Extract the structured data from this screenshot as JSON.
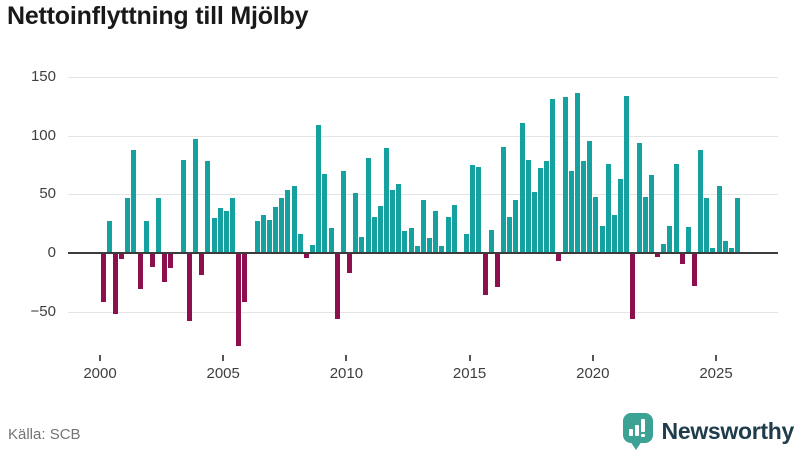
{
  "title": "Nettoinflyttning till Mjölby",
  "source": "Källa: SCB",
  "branding": {
    "name": "Newsworthy",
    "icon": "newsworthy-logo-icon",
    "icon_color": "#3ba294",
    "wordmark_color": "#1e3c4c"
  },
  "colors": {
    "positive_bar": "#16a1a1",
    "negative_bar": "#8e0f4d",
    "gridline": "#e4e4e4",
    "zero_line": "#3c3c3c",
    "axis_text": "#3f3f3f",
    "title_text": "#191919",
    "source_text": "#747474"
  },
  "chart_data": {
    "type": "bar",
    "title": "Nettoinflyttning till Mjölby",
    "xlabel": "",
    "ylabel": "",
    "frequency": "quarterly",
    "start": "2000-Q1",
    "end": "2025-Q4",
    "x_tick_years": [
      2000,
      2005,
      2010,
      2015,
      2020,
      2025
    ],
    "y_ticks": [
      150,
      100,
      50,
      0,
      -50
    ],
    "ylim": [
      -85,
      160
    ],
    "grid": "horizontal",
    "legend": "none",
    "series": [
      {
        "name": "Nettoinflyttning",
        "values": [
          -42,
          27,
          -52,
          -5,
          47,
          88,
          -31,
          27,
          -12,
          47,
          -25,
          -13,
          0,
          79,
          -58,
          97,
          -19,
          78,
          30,
          38,
          36,
          47,
          -79,
          -42,
          0,
          27,
          32,
          28,
          39,
          47,
          54,
          57,
          16,
          -4,
          7,
          109,
          67,
          21,
          -56,
          70,
          -17,
          51,
          14,
          81,
          31,
          40,
          89,
          54,
          59,
          19,
          21,
          6,
          45,
          13,
          36,
          6,
          31,
          41,
          0,
          16,
          75,
          73,
          -36,
          20,
          -29,
          90,
          31,
          45,
          111,
          79,
          52,
          72,
          78,
          131,
          -7,
          133,
          70,
          136,
          78,
          95,
          48,
          23,
          76,
          32,
          63,
          134,
          -56,
          94,
          48,
          66,
          -3,
          8,
          23,
          76,
          -9,
          22,
          -28,
          88,
          47,
          4,
          57,
          10,
          4,
          47
        ]
      }
    ]
  }
}
